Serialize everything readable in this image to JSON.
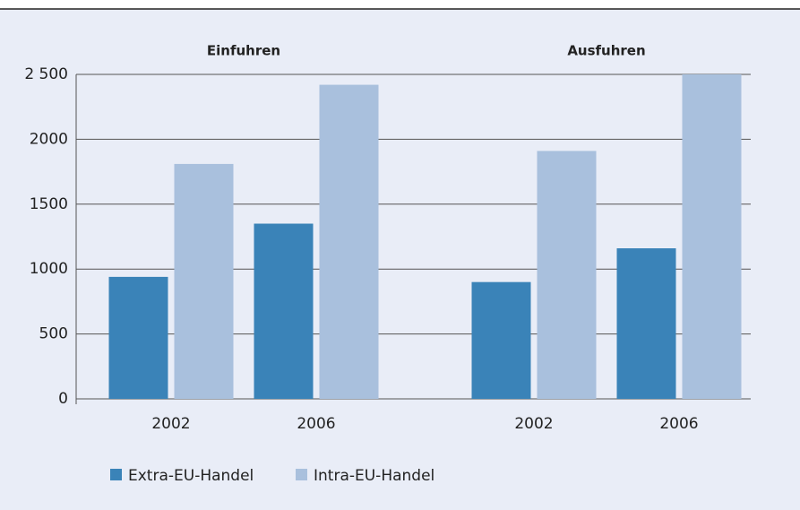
{
  "chart_data": {
    "type": "bar",
    "group_titles": [
      "Einfuhren",
      "Ausfuhren"
    ],
    "categories": [
      "2002",
      "2006",
      "2002",
      "2006"
    ],
    "series": [
      {
        "name": "Extra-EU-Handel",
        "color": "#3a83b8",
        "values": [
          940,
          1350,
          900,
          1160
        ]
      },
      {
        "name": "Intra-EU-Handel",
        "color": "#a9c0dd",
        "values": [
          1810,
          2420,
          1910,
          2500
        ]
      }
    ],
    "ylim": [
      0,
      2500
    ],
    "yticks": [
      0,
      500,
      1000,
      1500,
      2000,
      {
        "value": 2500,
        "label": "2 500"
      }
    ],
    "grid": true
  }
}
